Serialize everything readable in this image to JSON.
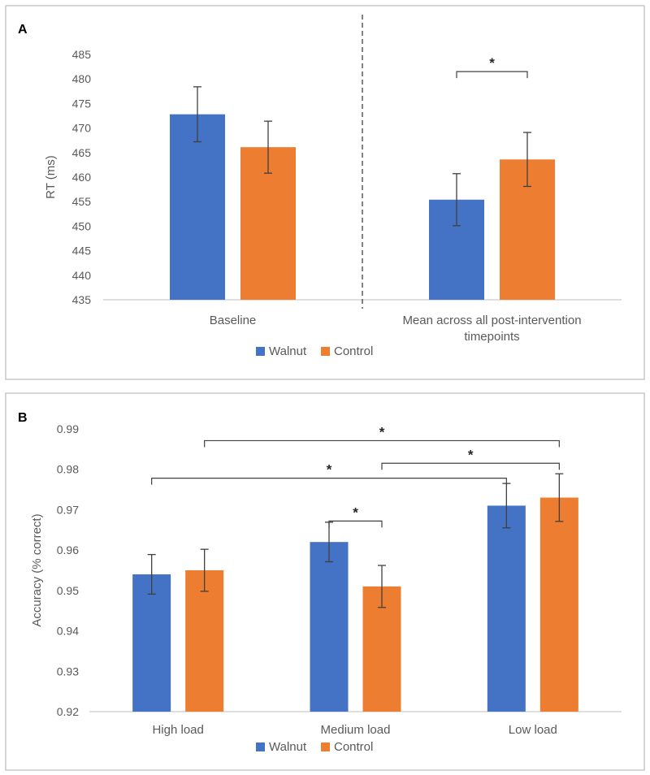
{
  "colors": {
    "walnut": "#4472C4",
    "control": "#ED7D31"
  },
  "chart_data": [
    {
      "type": "bar",
      "panel_label": "A",
      "ylabel": "RT (ms)",
      "xlabel": "",
      "ylim": [
        435,
        485
      ],
      "yticks": [
        "435",
        "440",
        "445",
        "450",
        "455",
        "460",
        "465",
        "470",
        "475",
        "480",
        "485"
      ],
      "categories": [
        "Baseline",
        "Mean across all post-intervention timepoints"
      ],
      "category_lines": [
        [
          "Baseline"
        ],
        [
          "Mean across all post-intervention",
          "timepoints"
        ]
      ],
      "series": [
        {
          "name": "Walnut",
          "values": [
            472.8,
            455.4
          ],
          "errors": [
            5.6,
            5.3
          ]
        },
        {
          "name": "Control",
          "values": [
            466.1,
            463.6
          ],
          "errors": [
            5.3,
            5.5
          ]
        }
      ],
      "significance": [
        {
          "label": "*",
          "from": [
            1,
            0
          ],
          "to": [
            1,
            1
          ],
          "level": 481.5
        }
      ],
      "divider": "dashed line between Baseline and post-intervention",
      "legend": "bottom-center"
    },
    {
      "type": "bar",
      "panel_label": "B",
      "ylabel": "Accuracy (% correct)",
      "xlabel": "",
      "ylim": [
        0.92,
        0.99
      ],
      "yticks": [
        "0.92",
        "0.93",
        "0.94",
        "0.95",
        "0.96",
        "0.97",
        "0.98",
        "0.99"
      ],
      "categories": [
        "High load",
        "Medium load",
        "Low load"
      ],
      "category_lines": [
        [
          "High load"
        ],
        [
          "Medium load"
        ],
        [
          "Low load"
        ]
      ],
      "series": [
        {
          "name": "Walnut",
          "values": [
            0.954,
            0.962,
            0.971
          ],
          "errors": [
            0.0049,
            0.0049,
            0.0055
          ]
        },
        {
          "name": "Control",
          "values": [
            0.955,
            0.951,
            0.973
          ],
          "errors": [
            0.0052,
            0.0052,
            0.0059
          ]
        }
      ],
      "significance": [
        {
          "label": "*",
          "from": [
            0,
            1
          ],
          "to": [
            2,
            1
          ],
          "level": 0.9871
        },
        {
          "label": "*",
          "from": [
            1,
            1
          ],
          "to": [
            2,
            1
          ],
          "level": 0.9815
        },
        {
          "label": "*",
          "from": [
            0,
            0
          ],
          "to": [
            2,
            0
          ],
          "level": 0.9778
        },
        {
          "label": "*",
          "from": [
            1,
            0
          ],
          "to": [
            1,
            1
          ],
          "level": 0.9672
        }
      ],
      "legend": "bottom-center"
    }
  ]
}
